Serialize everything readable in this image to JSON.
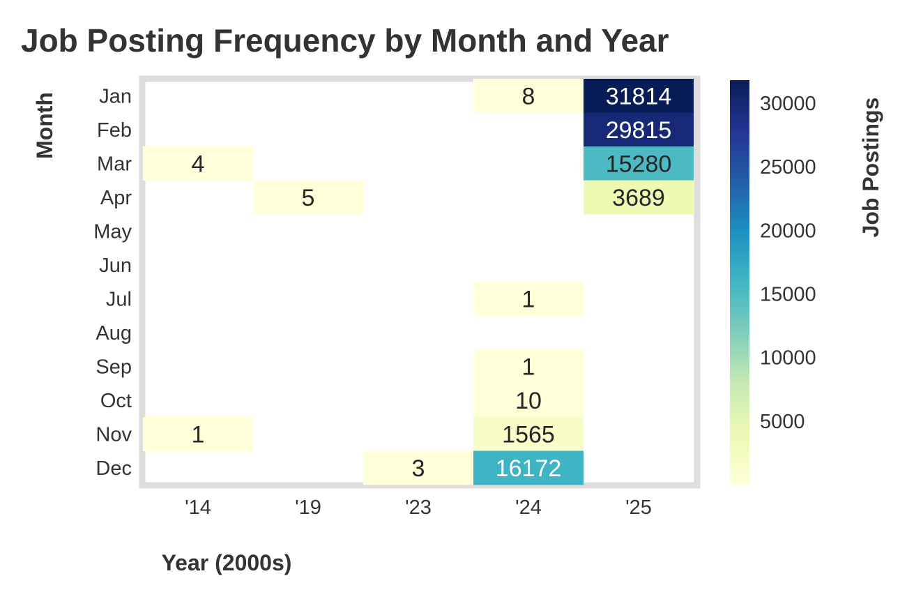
{
  "chart_data": {
    "type": "heatmap",
    "title": "Job Posting Frequency by Month and Year",
    "xlabel": "Year (2000s)",
    "ylabel": "Month",
    "x_categories": [
      "'14",
      "'19",
      "'23",
      "'24",
      "'25"
    ],
    "y_categories": [
      "Jan",
      "Feb",
      "Mar",
      "Apr",
      "May",
      "Jun",
      "Jul",
      "Aug",
      "Sep",
      "Oct",
      "Nov",
      "Dec"
    ],
    "values": [
      [
        null,
        null,
        null,
        8,
        31814
      ],
      [
        null,
        null,
        null,
        null,
        29815
      ],
      [
        4,
        null,
        null,
        null,
        15280
      ],
      [
        null,
        5,
        null,
        null,
        3689
      ],
      [
        null,
        null,
        null,
        null,
        null
      ],
      [
        null,
        null,
        null,
        null,
        null
      ],
      [
        null,
        null,
        null,
        1,
        null
      ],
      [
        null,
        null,
        null,
        null,
        null
      ],
      [
        null,
        null,
        null,
        1,
        null
      ],
      [
        null,
        null,
        null,
        10,
        null
      ],
      [
        1,
        null,
        null,
        1565,
        null
      ],
      [
        null,
        null,
        3,
        16172,
        null
      ]
    ],
    "colorbar": {
      "label": "Job Postings",
      "ticks": [
        5000,
        10000,
        15000,
        20000,
        25000,
        30000
      ],
      "range": [
        1,
        31814
      ],
      "colormap": "YlGnBu"
    }
  }
}
